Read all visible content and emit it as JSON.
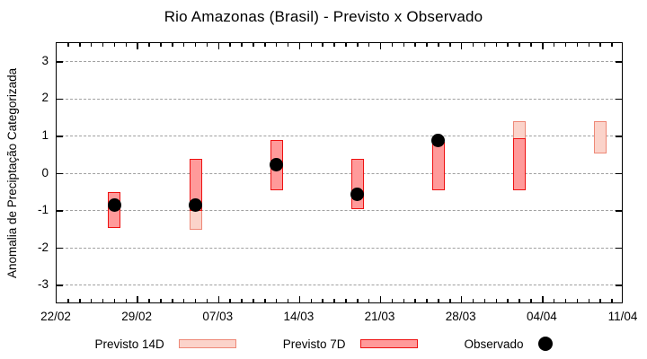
{
  "title": "Rio Amazonas (Brasil) - Previsto x Observado",
  "y_axis": {
    "label": "Anomalia de Preciptação Categorizada",
    "ticks": [
      "3",
      "2",
      "1",
      "0",
      "-1",
      "-2",
      "-3"
    ]
  },
  "x_axis": {
    "ticks": [
      "22/02",
      "29/02",
      "07/03",
      "14/03",
      "21/03",
      "28/03",
      "04/04",
      "11/04"
    ]
  },
  "legend": {
    "previsto_14d": "Previsto 14D",
    "previsto_7d": "Previsto 7D",
    "observado": "Observado"
  },
  "colors": {
    "previsto_14d_fill": "#fbd3ca",
    "previsto_14d_border": "#ee8877",
    "previsto_7d_fill": "#ff9a9a",
    "previsto_7d_border": "#ee1111",
    "observado": "#000000",
    "grid": "#a0a0a0"
  },
  "chart_data": {
    "type": "bar",
    "subtype": "ranged-forecast-bars-with-observed-scatter",
    "title": "Rio Amazonas (Brasil) - Previsto x Observado",
    "xlabel": "",
    "ylabel": "Anomalia de Preciptação Categorizada",
    "x_range": [
      "22/02",
      "11/04"
    ],
    "x_major_ticks": [
      "22/02",
      "29/02",
      "07/03",
      "14/03",
      "21/03",
      "28/03",
      "04/04",
      "11/04"
    ],
    "x_minor_tick_interval_days": 1,
    "ylim": [
      -3.5,
      3.5
    ],
    "yticks": [
      3,
      2,
      1,
      0,
      -1,
      -2,
      -3
    ],
    "grid": "horizontal-dashed",
    "legend_position": "bottom",
    "x": [
      "27/02",
      "05/03",
      "12/03",
      "19/03",
      "26/03",
      "02/04",
      "09/04"
    ],
    "series": [
      {
        "name": "Previsto 14D",
        "type": "range-bar",
        "ranges": [
          null,
          [
            -1.5,
            0.4
          ],
          null,
          null,
          null,
          [
            -0.45,
            1.4
          ],
          [
            0.55,
            1.4
          ]
        ]
      },
      {
        "name": "Previsto 7D",
        "type": "range-bar",
        "ranges": [
          [
            -1.45,
            -0.5
          ],
          [
            -1.0,
            0.4
          ],
          [
            -0.45,
            0.9
          ],
          [
            -0.95,
            0.4
          ],
          [
            -0.45,
            0.85
          ],
          [
            -0.45,
            0.95
          ],
          null
        ]
      },
      {
        "name": "Observado",
        "type": "scatter",
        "values": [
          -0.85,
          -0.85,
          0.25,
          -0.55,
          0.9,
          null,
          null
        ]
      }
    ]
  }
}
